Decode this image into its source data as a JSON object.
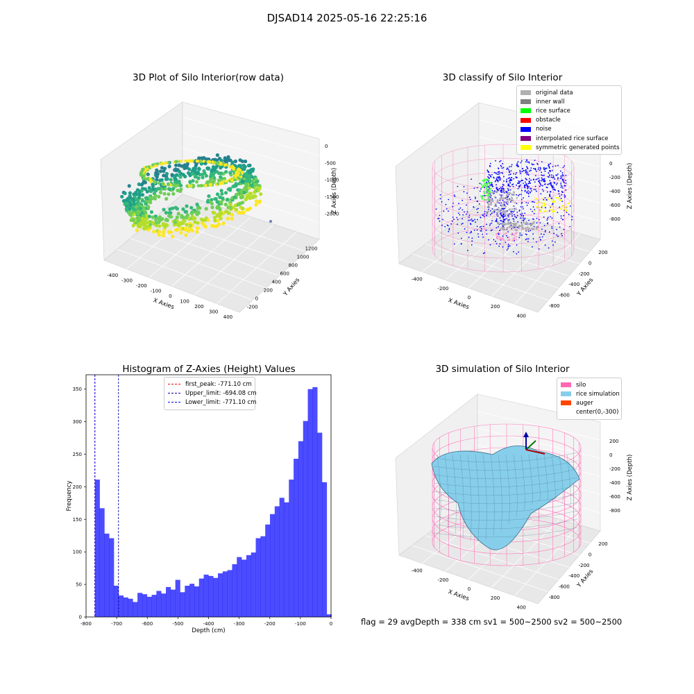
{
  "figure": {
    "suptitle": "DJSAD14 2025-05-16 22:25:16",
    "footer": "flag = 29  avgDepth = 338 cm  sv1 = 500~2500  sv2 = 500~2500"
  },
  "plot_raw": {
    "title": "3D Plot of Silo Interior(row data)",
    "xlabel": "X Axies",
    "ylabel": "Y Axies",
    "zlabel": "Z Axies (Depth)",
    "xticks": [
      "-400",
      "-300",
      "-200",
      "-100",
      "0",
      "100",
      "200",
      "300",
      "400"
    ],
    "yticks": [
      "-200",
      "0",
      "200",
      "400",
      "600",
      "800",
      "1000",
      "1200"
    ],
    "zticks": [
      "0",
      "-500",
      "-1000",
      "-1500",
      "-2000"
    ]
  },
  "plot_classify": {
    "title": "3D classify of Silo Interior",
    "xlabel": "X Axies",
    "ylabel": "Y Axies",
    "zlabel": "Z Axies (Depth)",
    "xticks": [
      "-400",
      "-200",
      "0",
      "200",
      "400"
    ],
    "yticks": [
      "200",
      "0",
      "-200",
      "-400",
      "-600",
      "-800"
    ],
    "zticks": [
      "200",
      "0",
      "-200",
      "-400",
      "-600",
      "-800"
    ],
    "legend": [
      {
        "label": "original data",
        "color": "#b0b0b0"
      },
      {
        "label": "inner wall",
        "color": "#808080"
      },
      {
        "label": "rice surface",
        "color": "#00ff00"
      },
      {
        "label": "obstacle",
        "color": "#ff0000"
      },
      {
        "label": "noise",
        "color": "#0000ff"
      },
      {
        "label": "interpolated rice surface",
        "color": "#800080"
      },
      {
        "label": "symmetric generated points",
        "color": "#ffff00"
      }
    ]
  },
  "plot_sim": {
    "title": "3D simulation of Silo Interior",
    "xlabel": "X Axies",
    "ylabel": "Y Axies",
    "zlabel": "Z Axies (Depth)",
    "xticks": [
      "-400",
      "-200",
      "0",
      "200",
      "400"
    ],
    "yticks": [
      "200",
      "0",
      "-200",
      "-400",
      "-600",
      "-800"
    ],
    "zticks": [
      "200",
      "0",
      "-200",
      "-400",
      "-600",
      "-800"
    ],
    "legend": [
      {
        "label": "silo",
        "color": "#ff69b4"
      },
      {
        "label": "rice simulation",
        "color": "#87ceeb"
      },
      {
        "label": "auger",
        "color": "#ff4500"
      },
      {
        "label": "center(0,-300)",
        "color": "#ffffff"
      }
    ]
  },
  "chart_data": {
    "type": "bar",
    "title": "Histogram of Z-Axies (Height) Values",
    "xlabel": "Depth (cm)",
    "ylabel": "Frequency",
    "xlim": [
      -800,
      0
    ],
    "ylim": [
      0,
      372
    ],
    "xticks": [
      -800,
      -700,
      -600,
      -500,
      -400,
      -300,
      -200,
      -100,
      0
    ],
    "yticks": [
      0,
      50,
      100,
      150,
      200,
      250,
      300,
      350
    ],
    "bin_start": -771.1,
    "bin_width": 15.45,
    "values": [
      211,
      167,
      128,
      121,
      48,
      33,
      30,
      28,
      23,
      37,
      35,
      31,
      34,
      40,
      36,
      46,
      42,
      57,
      38,
      48,
      51,
      47,
      59,
      65,
      63,
      60,
      67,
      70,
      72,
      81,
      92,
      88,
      95,
      99,
      121,
      124,
      142,
      158,
      170,
      183,
      176,
      211,
      243,
      270,
      301,
      350,
      353,
      283,
      207,
      4
    ],
    "bar_color": "#0000ff",
    "bar_alpha": 0.7,
    "vlines": [
      {
        "label": "first_peak: -771.10 cm",
        "x": -771.1,
        "color": "#ff0000"
      },
      {
        "label": "Upper_limit: -694.08 cm",
        "x": -694.08,
        "color": "#0000aa"
      },
      {
        "label": "Lower_limit: -771.10 cm",
        "x": -771.1,
        "color": "#0000ff"
      }
    ],
    "legend_position": "top-center"
  }
}
